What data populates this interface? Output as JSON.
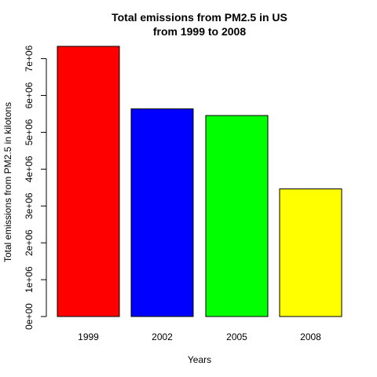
{
  "chart_data": {
    "type": "bar",
    "title_line1": "Total emissions from PM2.5 in US",
    "title_line2": "from 1999 to 2008",
    "xlabel": "Years",
    "ylabel": "Total emissions from PM2.5 in kilotons",
    "categories": [
      "1999",
      "2002",
      "2005",
      "2008"
    ],
    "values": [
      7332967,
      5635780,
      5454703,
      3464206
    ],
    "colors": [
      "#ff0000",
      "#0000ff",
      "#00ff00",
      "#ffff00"
    ],
    "ylim": [
      0,
      7332967
    ],
    "yticks": [
      0,
      1000000,
      2000000,
      3000000,
      4000000,
      5000000,
      6000000,
      7000000
    ],
    "ytick_labels": [
      "0e+00",
      "1e+06",
      "2e+06",
      "3e+06",
      "4e+06",
      "5e+06",
      "6e+06",
      "7e+06"
    ],
    "grid": false,
    "legend": "none"
  }
}
